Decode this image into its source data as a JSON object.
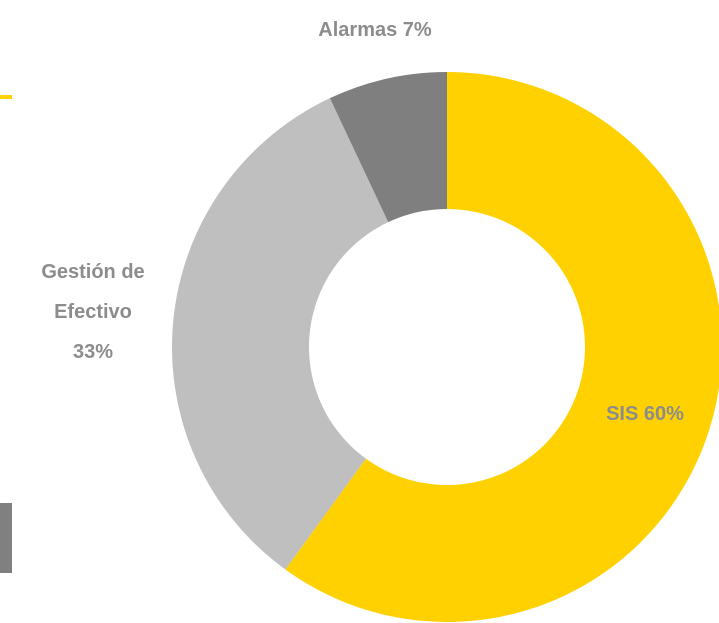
{
  "chart_data": {
    "type": "donut",
    "categories": [
      "SIS",
      "Gestión de Efectivo",
      "Alarmas"
    ],
    "values": [
      60,
      33,
      7
    ],
    "value_labels": [
      "60%",
      "33%",
      "7%"
    ],
    "colors": [
      "#FFD100",
      "#BFBFBF",
      "#7F7F7F"
    ]
  }
}
